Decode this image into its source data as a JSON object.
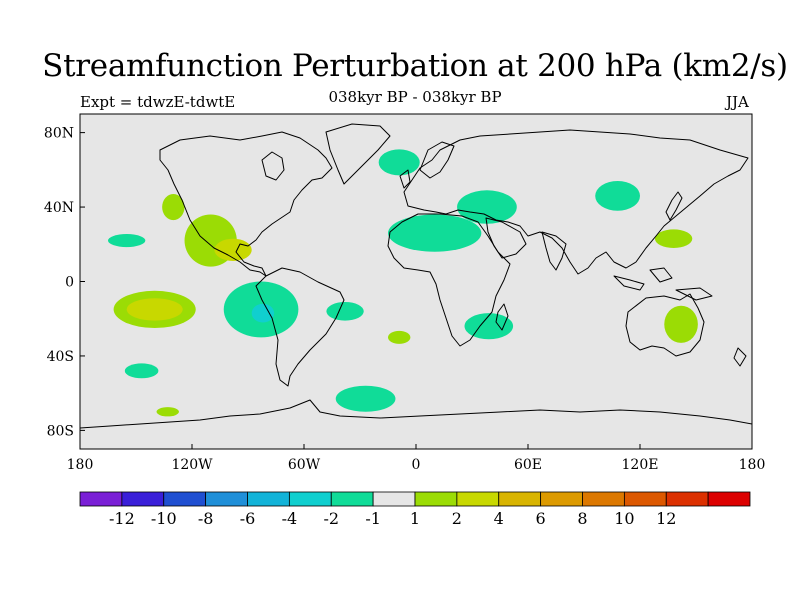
{
  "title": "Streamfunction Perturbation at 200 hPa (km2/s)",
  "subtitle_left": "Expt = tdwzE-tdwtE",
  "subtitle_center": "038kyr BP - 038kyr BP",
  "subtitle_right": "JJA",
  "map": {
    "lon_range": [
      -180,
      180
    ],
    "lat_range": [
      -90,
      90
    ],
    "background_color": "#e6e6e6",
    "lat_ticks": [
      {
        "value": 80,
        "label": "80N"
      },
      {
        "value": 40,
        "label": "40N"
      },
      {
        "value": 0,
        "label": "0"
      },
      {
        "value": -40,
        "label": "40S"
      },
      {
        "value": -80,
        "label": "80S"
      }
    ],
    "lon_ticks": [
      {
        "value": -180,
        "label": "180"
      },
      {
        "value": -120,
        "label": "120W"
      },
      {
        "value": -60,
        "label": "60W"
      },
      {
        "value": 0,
        "label": "0"
      },
      {
        "value": 60,
        "label": "60E"
      },
      {
        "value": 120,
        "label": "120E"
      },
      {
        "value": 180,
        "label": "180"
      }
    ]
  },
  "colorbar": {
    "colors": [
      "#7a1fd6",
      "#3a1fd9",
      "#1f4fd1",
      "#1f8fd8",
      "#12b3d8",
      "#10cfcf",
      "#10dc98",
      "#e6e6e6",
      "#9bdc05",
      "#c8d800",
      "#d8b400",
      "#dc9a00",
      "#dc7800",
      "#dc5800",
      "#dc3000",
      "#dc0000"
    ],
    "labels": [
      "-12",
      "-10",
      "-8",
      "-6",
      "-4",
      "-2",
      "-1",
      "1",
      "2",
      "4",
      "6",
      "8",
      "10",
      "12"
    ]
  },
  "anomalies": [
    {
      "lon": -155,
      "lat": 22,
      "rlon": 10,
      "rlat": 3.5,
      "level": "-1"
    },
    {
      "lon": -147,
      "lat": -48,
      "rlon": 9,
      "rlat": 4,
      "level": "-1"
    },
    {
      "lon": -133,
      "lat": -70,
      "rlon": 6,
      "rlat": 2.5,
      "level": "1"
    },
    {
      "lon": -140,
      "lat": -15,
      "rlon": 22,
      "rlat": 10,
      "level": "1"
    },
    {
      "lon": -140,
      "lat": -15,
      "rlon": 15,
      "rlat": 6,
      "level": "2"
    },
    {
      "lon": -130,
      "lat": 40,
      "rlon": 6,
      "rlat": 7,
      "level": "1"
    },
    {
      "lon": -110,
      "lat": 22,
      "rlon": 14,
      "rlat": 14,
      "level": "1"
    },
    {
      "lon": -98,
      "lat": 17,
      "rlon": 10,
      "rlat": 6,
      "level": "2"
    },
    {
      "lon": -83,
      "lat": -15,
      "rlon": 20,
      "rlat": 15,
      "level": "-1"
    },
    {
      "lon": -82,
      "lat": -17,
      "rlon": 6,
      "rlat": 5,
      "level": "-2"
    },
    {
      "lon": -38,
      "lat": -16,
      "rlon": 10,
      "rlat": 5,
      "level": "-1"
    },
    {
      "lon": -9,
      "lat": -30,
      "rlon": 6,
      "rlat": 3.5,
      "level": "1"
    },
    {
      "lon": -27,
      "lat": -63,
      "rlon": 16,
      "rlat": 7,
      "level": "-1"
    },
    {
      "lon": -9,
      "lat": 64,
      "rlon": 11,
      "rlat": 7,
      "level": "-1"
    },
    {
      "lon": 10,
      "lat": 26,
      "rlon": 25,
      "rlat": 10,
      "level": "-1"
    },
    {
      "lon": 38,
      "lat": 40,
      "rlon": 16,
      "rlat": 9,
      "level": "-1"
    },
    {
      "lon": 39,
      "lat": -24,
      "rlon": 13,
      "rlat": 7,
      "level": "-1"
    },
    {
      "lon": 108,
      "lat": 46,
      "rlon": 12,
      "rlat": 8,
      "level": "-1"
    },
    {
      "lon": 138,
      "lat": 23,
      "rlon": 10,
      "rlat": 5,
      "level": "1"
    },
    {
      "lon": 142,
      "lat": -23,
      "rlon": 9,
      "rlat": 10,
      "level": "1"
    }
  ]
}
